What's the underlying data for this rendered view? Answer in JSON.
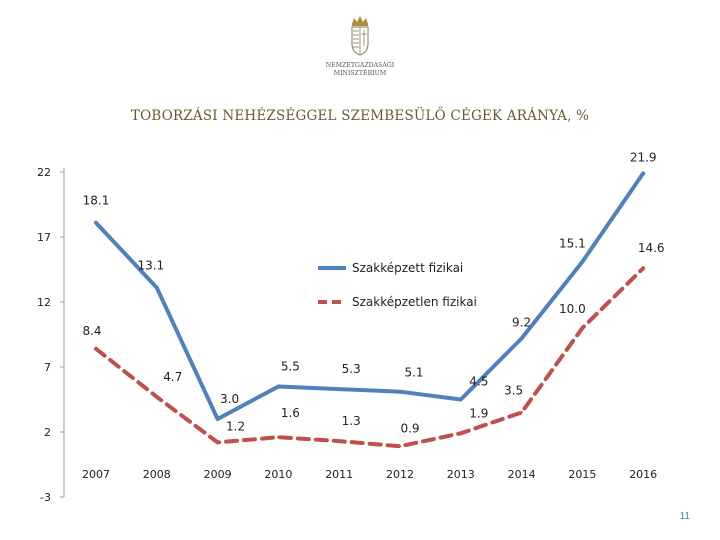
{
  "header": {
    "crest_text_line1": "NEMZETGAZDASÁGI",
    "crest_text_line2": "MINISZTÉRIUM"
  },
  "footer": {
    "page_number": "11"
  },
  "chart_data": {
    "type": "line",
    "title": "TOBORZÁSI NEHÉZSÉGGEL SZEMBESÜLŐ CÉGEK ARÁNYA, %",
    "categories": [
      "2007",
      "2008",
      "2009",
      "2010",
      "2011",
      "2012",
      "2013",
      "2014",
      "2015",
      "2016"
    ],
    "yticks": [
      "22",
      "17",
      "12",
      "7",
      "2",
      "-3"
    ],
    "ylim": [
      -3,
      22
    ],
    "series": [
      {
        "name": "Szakképzett fizikai",
        "color": "#4f81bd",
        "style": "solid",
        "values": [
          18.1,
          13.1,
          3.0,
          5.5,
          5.3,
          5.1,
          4.5,
          9.2,
          15.1,
          21.9
        ],
        "labels": [
          "18.1",
          "13.1",
          "3.0",
          "5.5",
          "5.3",
          "5.1",
          "4.5",
          "9.2",
          "15.1",
          "21.9"
        ]
      },
      {
        "name": "Szakképzetlen fizikai",
        "color": "#c0504d",
        "style": "dashed",
        "values": [
          8.4,
          4.7,
          1.2,
          1.6,
          1.3,
          0.9,
          1.9,
          3.5,
          10.0,
          14.6
        ],
        "labels": [
          "8.4",
          "4.7",
          "1.2",
          "1.6",
          "1.3",
          "0.9",
          "1.9",
          "3.5",
          "10.0",
          "14.6"
        ]
      }
    ],
    "legend_position": "center"
  }
}
